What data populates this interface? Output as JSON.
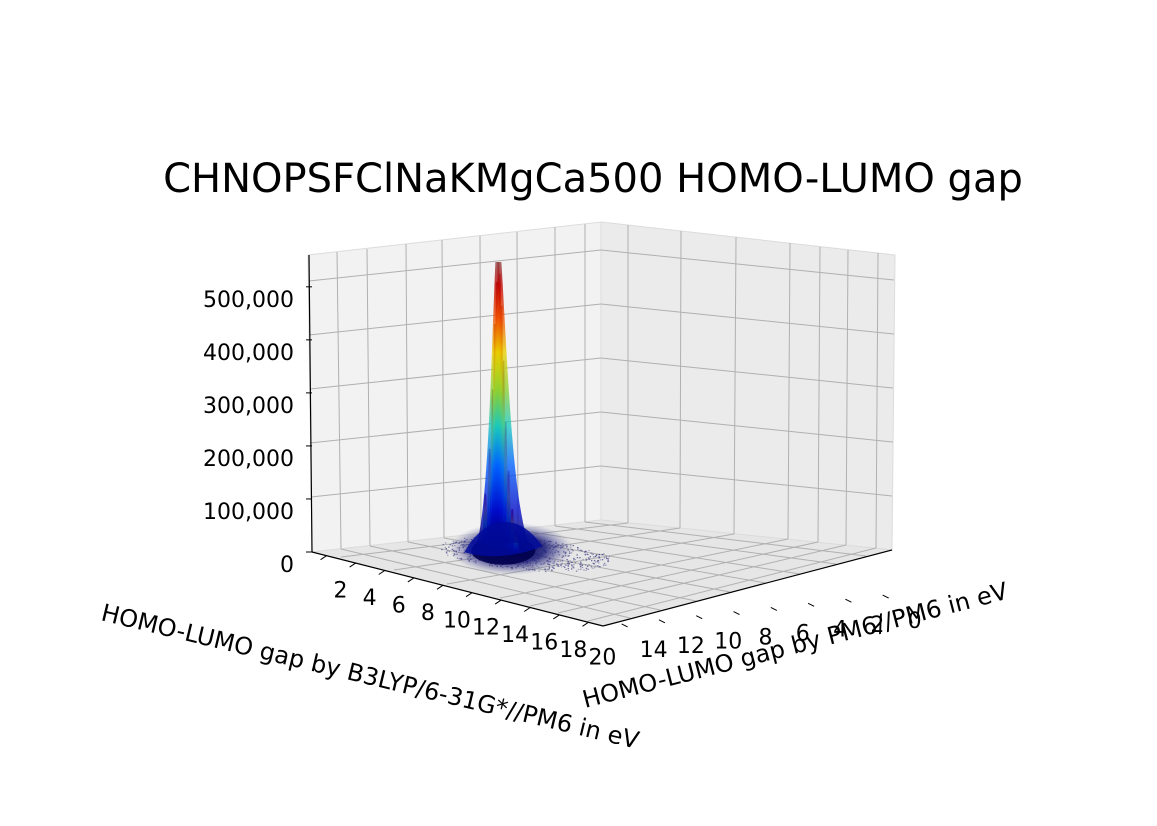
{
  "chart_data": {
    "type": "surface3d",
    "title": "CHNOPSFClNaKMgCa500 HOMO-LUMO gap",
    "xlabel": "HOMO-LUMO gap by B3LYP/6-31G*//PM6 in eV",
    "ylabel": "HOMO-LUMO gap by PM6//PM6 in eV",
    "x_ticks": [
      "2",
      "4",
      "6",
      "8",
      "10",
      "12",
      "14",
      "16",
      "18",
      "20"
    ],
    "y_ticks": [
      "14",
      "12",
      "10",
      "8",
      "6",
      "4",
      "2",
      "0"
    ],
    "z_ticks": [
      "0",
      "100,000",
      "200,000",
      "300,000",
      "400,000",
      "500,000"
    ],
    "xlim": [
      1,
      21
    ],
    "ylim": [
      15,
      -0.5
    ],
    "zlim": [
      0,
      560000
    ],
    "colormap": "jet",
    "peak": {
      "x": 4.2,
      "y": 7.5,
      "z": 540000
    },
    "grid": true
  }
}
